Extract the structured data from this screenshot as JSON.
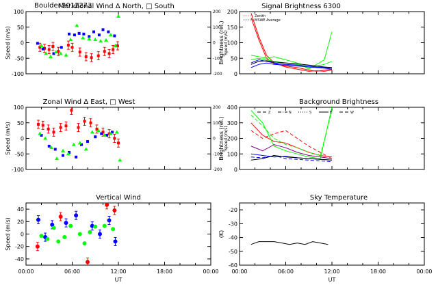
{
  "figure": {
    "station": "Boulder",
    "date_code": "2012273"
  },
  "chart_data": [
    {
      "id": "meridional-wind",
      "type": "scatter",
      "title": "Meridional Wind",
      "legend_text": "Δ North, □ South",
      "ylabel": "Speed (m/s)",
      "ylabel_right": "Speed (m/s)",
      "xlim": [
        0,
        24
      ],
      "ylim": [
        -100,
        100
      ],
      "yticks": [
        -100,
        -50,
        0,
        50,
        100
      ],
      "ylim_right": [
        -200,
        200
      ],
      "yticks_right": [
        -200,
        -100,
        0,
        100,
        200
      ],
      "xticks_labeled": false,
      "series": [
        {
          "color": "#ff0000",
          "marker": "square",
          "error_bars": true,
          "x": [
            1.8,
            2.4,
            3.0,
            3.5,
            4.2,
            5.5,
            6.0,
            7.0,
            7.8,
            8.5,
            9.4,
            10.2,
            10.8,
            11.3,
            11.9
          ],
          "y": [
            -15,
            -18,
            -22,
            -12,
            -28,
            -8,
            -15,
            -30,
            -45,
            -48,
            -42,
            -28,
            -35,
            -22,
            -10
          ]
        },
        {
          "color": "#0000ff",
          "marker": "square",
          "error_bars": false,
          "x": [
            1.5,
            2.2,
            3.6,
            4.6,
            5.6,
            6.3,
            6.9,
            7.5,
            8.2,
            8.8,
            9.5,
            10.0,
            10.7,
            11.5
          ],
          "y": [
            -2,
            -20,
            -35,
            -15,
            28,
            25,
            30,
            28,
            20,
            35,
            25,
            42,
            35,
            22
          ]
        },
        {
          "color": "#00ff00",
          "marker": "triangle",
          "error_bars": false,
          "x": [
            2.0,
            2.6,
            3.2,
            3.9,
            4.5,
            5.2,
            5.8,
            6.6,
            7.4,
            8.2,
            9.0,
            9.7,
            10.4,
            11.0,
            11.6,
            12.0
          ],
          "y": [
            -10,
            -35,
            -45,
            -30,
            -35,
            -40,
            10,
            55,
            15,
            12,
            10,
            5,
            8,
            25,
            -10,
            85
          ]
        }
      ]
    },
    {
      "id": "signal-brightness",
      "type": "line",
      "title": "Signal Brightness",
      "title_suffix": "6300",
      "ylabel": "Brightness (rel.)",
      "xlim": [
        0,
        24
      ],
      "ylim": [
        0,
        200
      ],
      "yticks": [
        0,
        50,
        100,
        150,
        200
      ],
      "xticks_labeled": false,
      "legend": [
        {
          "label": "Zenith",
          "color": "#ff0000",
          "style": "dotted"
        },
        {
          "label": "MSWE Average",
          "color": "#000000",
          "style": "dotted"
        }
      ],
      "series": [
        {
          "color": "#ff0000",
          "x": [
            1.5,
            2.5,
            3.5,
            4.5,
            6.0,
            7.5,
            9.0,
            10.0,
            11.0,
            12.0
          ],
          "y": [
            195,
            120,
            60,
            35,
            22,
            15,
            8,
            10,
            8,
            12
          ]
        },
        {
          "color": "#ff0000",
          "x": [
            1.5,
            2.5,
            3.5,
            4.5,
            6.0,
            7.5,
            9.0,
            10.0,
            11.0,
            12.0
          ],
          "y": [
            180,
            110,
            50,
            32,
            25,
            20,
            12,
            8,
            12,
            15
          ]
        },
        {
          "color": "#00ff00",
          "x": [
            1.5,
            2.5,
            3.5,
            4.5,
            6.0,
            7.5,
            9.0,
            10.0,
            11.0,
            12.0
          ],
          "y": [
            60,
            55,
            50,
            55,
            45,
            35,
            15,
            30,
            45,
            135
          ]
        },
        {
          "color": "#00ff00",
          "x": [
            1.5,
            2.5,
            3.5,
            4.5,
            6.0,
            7.5,
            9.0,
            10.0,
            11.0,
            12.0
          ],
          "y": [
            45,
            50,
            45,
            40,
            35,
            30,
            20,
            25,
            30,
            40
          ]
        },
        {
          "color": "#0000ff",
          "x": [
            1.5,
            2.5,
            3.5,
            4.5,
            6.0,
            7.5,
            9.0,
            10.0,
            11.0,
            12.0
          ],
          "y": [
            35,
            45,
            40,
            35,
            30,
            28,
            25,
            22,
            20,
            18
          ]
        },
        {
          "color": "#0000ff",
          "x": [
            1.5,
            2.5,
            3.5,
            4.5,
            6.0,
            7.5,
            9.0,
            10.0,
            11.0,
            12.0
          ],
          "y": [
            20,
            30,
            35,
            30,
            28,
            25,
            22,
            20,
            18,
            15
          ]
        },
        {
          "color": "#000000",
          "x": [
            1.5,
            2.5,
            3.5,
            4.5,
            6.0,
            7.5,
            9.0,
            10.0,
            11.0,
            12.0
          ],
          "y": [
            30,
            40,
            42,
            38,
            35,
            32,
            28,
            25,
            22,
            20
          ]
        }
      ]
    },
    {
      "id": "zonal-wind",
      "type": "scatter",
      "title": "Zonal Wind",
      "legend_text": "Δ East, □ West",
      "ylabel": "Speed (m/s)",
      "ylabel_right": "Speed (m/s)",
      "xlim": [
        0,
        24
      ],
      "ylim": [
        -100,
        100
      ],
      "yticks": [
        -100,
        -50,
        0,
        50,
        100
      ],
      "ylim_right": [
        -200,
        200
      ],
      "yticks_right": [
        -200,
        -100,
        0,
        100,
        200
      ],
      "xticks_labeled": false,
      "series": [
        {
          "color": "#ff0000",
          "marker": "square",
          "error_bars": true,
          "x": [
            1.6,
            2.2,
            2.9,
            3.6,
            4.5,
            5.2,
            5.9,
            6.8,
            7.6,
            8.4,
            9.2,
            10.0,
            10.8,
            11.5,
            12.0
          ],
          "y": [
            45,
            42,
            30,
            20,
            35,
            40,
            90,
            35,
            55,
            50,
            30,
            20,
            15,
            0,
            -15
          ]
        },
        {
          "color": "#0000ff",
          "marker": "square",
          "error_bars": false,
          "x": [
            2.0,
            3.0,
            3.8,
            4.8,
            5.6,
            6.5,
            7.2,
            8.0,
            9.0,
            9.8,
            10.5,
            11.2
          ],
          "y": [
            10,
            -25,
            -35,
            -55,
            -45,
            -60,
            -20,
            -10,
            5,
            15,
            10,
            20
          ]
        },
        {
          "color": "#00ff00",
          "marker": "triangle",
          "error_bars": false,
          "x": [
            1.8,
            2.5,
            3.3,
            4.0,
            4.8,
            5.5,
            6.2,
            7.0,
            7.8,
            8.6,
            9.4,
            10.2,
            11.0,
            11.8,
            12.2
          ],
          "y": [
            15,
            0,
            -30,
            -65,
            -40,
            -50,
            -20,
            -15,
            -35,
            20,
            25,
            10,
            15,
            20,
            -70
          ]
        }
      ]
    },
    {
      "id": "background-brightness",
      "type": "line",
      "title": "Background Brightness",
      "ylabel": "Brightness (rel.)",
      "xlim": [
        0,
        24
      ],
      "ylim": [
        0,
        400
      ],
      "yticks": [
        0,
        100,
        200,
        300,
        400
      ],
      "xticks_labeled": false,
      "legend": [
        {
          "label": "Z",
          "color": "#000000",
          "style": "dashed"
        },
        {
          "label": "N",
          "color": "#000000",
          "style": "dashdot"
        },
        {
          "label": "S",
          "color": "#000000",
          "style": "dotted"
        },
        {
          "label": "E",
          "color": "#000000",
          "style": "solid"
        },
        {
          "label": "W",
          "color": "#000000",
          "style": "dashed"
        }
      ],
      "series": [
        {
          "color": "#ff0000",
          "style": "solid",
          "x": [
            1.5,
            3.0,
            4.5,
            6.0,
            7.5,
            9.0,
            10.5,
            12.0
          ],
          "y": [
            300,
            220,
            180,
            170,
            140,
            110,
            90,
            80
          ]
        },
        {
          "color": "#ff0000",
          "style": "dashed",
          "x": [
            1.5,
            3.0,
            4.5,
            6.0,
            7.5,
            9.0,
            10.5,
            12.0
          ],
          "y": [
            250,
            200,
            230,
            250,
            200,
            150,
            110,
            70
          ]
        },
        {
          "color": "#00ff00",
          "style": "solid",
          "x": [
            1.5,
            3.0,
            4.5,
            6.0,
            7.5,
            9.0,
            10.5,
            12.0
          ],
          "y": [
            380,
            300,
            150,
            120,
            100,
            80,
            70,
            400
          ]
        },
        {
          "color": "#00ff00",
          "style": "dashed",
          "x": [
            1.5,
            3.0,
            4.5,
            6.0,
            7.5,
            9.0,
            10.5,
            12.0
          ],
          "y": [
            350,
            280,
            200,
            160,
            140,
            110,
            90,
            380
          ]
        },
        {
          "color": "#0000ff",
          "style": "solid",
          "x": [
            1.5,
            3.0,
            4.5,
            6.0,
            7.5,
            9.0,
            10.5,
            12.0
          ],
          "y": [
            100,
            90,
            80,
            85,
            75,
            70,
            65,
            60
          ]
        },
        {
          "color": "#0000ff",
          "style": "dashed",
          "x": [
            1.5,
            3.0,
            4.5,
            6.0,
            7.5,
            9.0,
            10.5,
            12.0
          ],
          "y": [
            80,
            75,
            90,
            70,
            65,
            60,
            55,
            50
          ]
        },
        {
          "color": "#800080",
          "style": "solid",
          "x": [
            1.5,
            3.0,
            4.5,
            6.0,
            7.5,
            9.0,
            10.5,
            12.0
          ],
          "y": [
            150,
            120,
            160,
            140,
            110,
            90,
            80,
            70
          ]
        },
        {
          "color": "#000000",
          "style": "solid",
          "x": [
            1.5,
            3.0,
            4.5,
            6.0,
            7.5,
            9.0,
            10.5,
            12.0
          ],
          "y": [
            60,
            70,
            90,
            80,
            75,
            70,
            65,
            60
          ]
        }
      ]
    },
    {
      "id": "vertical-wind",
      "type": "scatter",
      "title": "Vertical Wind",
      "ylabel": "Speed (m/s)",
      "xlabel": "UT",
      "xlim": [
        0,
        24
      ],
      "ylim": [
        -50,
        50
      ],
      "yticks": [
        -40,
        -20,
        0,
        20,
        40
      ],
      "xticks": [
        "00:00",
        "06:00",
        "12:00",
        "18:00",
        "00:00"
      ],
      "series": [
        {
          "color": "#ff0000",
          "marker": "circle",
          "error_bars": true,
          "x": [
            1.5,
            4.5,
            8.0,
            10.5,
            11.5
          ],
          "y": [
            -20,
            28,
            -45,
            47,
            38
          ]
        },
        {
          "color": "#0000ff",
          "marker": "circle",
          "error_bars": true,
          "x": [
            1.6,
            2.5,
            3.4,
            5.2,
            6.5,
            8.6,
            9.6,
            10.8,
            11.6
          ],
          "y": [
            23,
            -5,
            15,
            18,
            30,
            13,
            0,
            22,
            -12
          ]
        },
        {
          "color": "#00ff00",
          "marker": "circle",
          "error_bars": false,
          "x": [
            2.0,
            2.8,
            3.6,
            4.2,
            5.0,
            5.8,
            7.0,
            7.6,
            8.3,
            9.0,
            10.2,
            11.3
          ],
          "y": [
            -3,
            -8,
            10,
            -12,
            -5,
            13,
            0,
            -15,
            3,
            12,
            13,
            8
          ]
        }
      ]
    },
    {
      "id": "sky-temperature",
      "type": "line",
      "title": "Sky Temperature",
      "ylabel": "(K)",
      "xlabel": "UT",
      "xlim": [
        0,
        24
      ],
      "ylim": [
        -60,
        -15
      ],
      "yticks": [
        -60,
        -50,
        -40,
        -30,
        -20
      ],
      "xticks": [
        "00:00",
        "06:00",
        "12:00",
        "18:00",
        "00:00"
      ],
      "series": [
        {
          "color": "#000000",
          "x": [
            1.5,
            2.5,
            3.5,
            4.5,
            5.5,
            6.5,
            7.5,
            8.5,
            9.5,
            10.5,
            11.5
          ],
          "y": [
            -45,
            -43,
            -43,
            -43,
            -44,
            -45,
            -44,
            -45,
            -43,
            -44,
            -45
          ]
        }
      ]
    }
  ]
}
